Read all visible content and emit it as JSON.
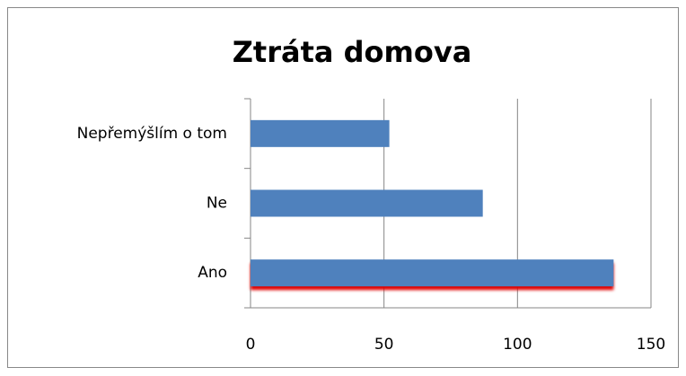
{
  "chart_data": {
    "type": "bar",
    "orientation": "horizontal",
    "title": "Ztráta domova",
    "categories": [
      "Ano",
      "Ne",
      "Nepřemýšlím o tom"
    ],
    "values": [
      136,
      87,
      52
    ],
    "color": "#4f81bd",
    "xlim": [
      0,
      150
    ],
    "xticks": [
      0,
      50,
      100,
      150
    ],
    "grid": true
  }
}
